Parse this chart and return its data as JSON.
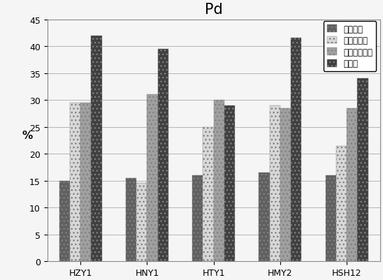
{
  "title": "Pd",
  "ylabel": "%",
  "categories": [
    "HZY1",
    "HNY1",
    "HTY1",
    "HMY2",
    "HSH12"
  ],
  "series_names": [
    "可交换相",
    "有机结合相",
    "硫化物结合相",
    "残渣相"
  ],
  "series_values": [
    [
      15,
      15.5,
      16,
      16.5,
      16
    ],
    [
      29.5,
      14.5,
      25,
      29,
      21.5
    ],
    [
      29.5,
      31,
      30,
      28.5,
      28.5
    ],
    [
      42,
      39.5,
      29,
      41.5,
      34
    ]
  ],
  "colors": [
    "#606060",
    "#d8d8d8",
    "#a0a0a0",
    "#404040"
  ],
  "hatches": [
    "...",
    "...",
    "...",
    "..."
  ],
  "ylim": [
    0,
    45
  ],
  "yticks": [
    0,
    5,
    10,
    15,
    20,
    25,
    30,
    35,
    40,
    45
  ],
  "bar_width": 0.16,
  "title_fontsize": 15,
  "label_fontsize": 10,
  "tick_fontsize": 9,
  "legend_fontsize": 8.5,
  "background_color": "#f5f5f5"
}
